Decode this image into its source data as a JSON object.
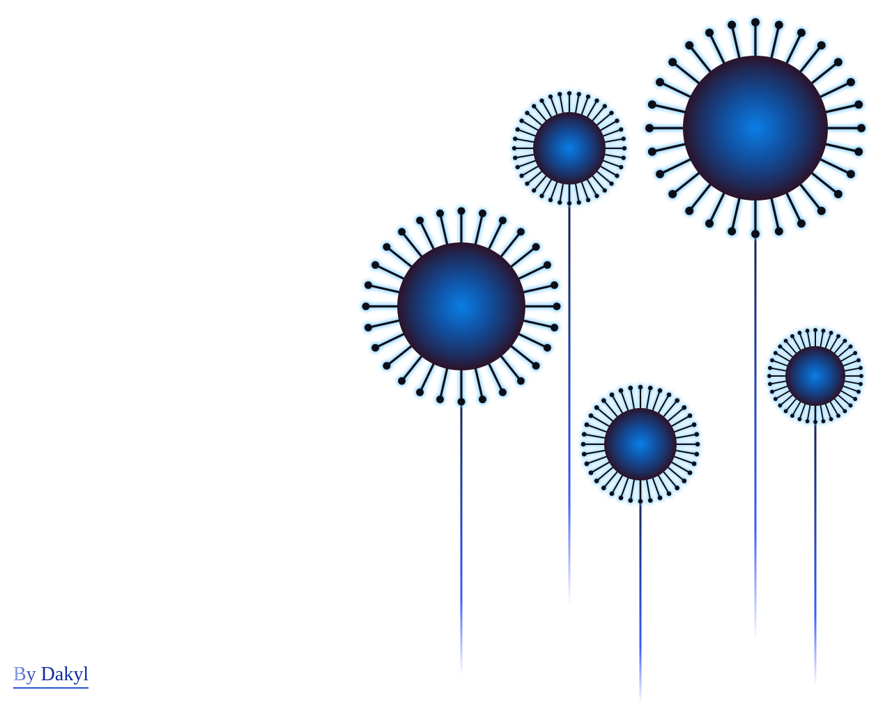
{
  "credit": {
    "text": "By Dakyl"
  },
  "colors": {
    "background": "#ffffff",
    "bloom_center": "#0a78e0",
    "bloom_edge": "#2a1428",
    "filament": "#0d0d12",
    "glow": "#6fc6ff",
    "stem_top": "#14284f",
    "stem_bottom": "#3f5cff",
    "credit_text": "#0b2a9c"
  },
  "flowers": [
    {
      "name": "flower-large-left",
      "spokes": 28
    },
    {
      "name": "flower-small-upper",
      "spokes": 36
    },
    {
      "name": "flower-large-upper-right",
      "spokes": 28
    },
    {
      "name": "flower-medium-lower",
      "spokes": 36
    },
    {
      "name": "flower-small-right",
      "spokes": 36
    }
  ]
}
